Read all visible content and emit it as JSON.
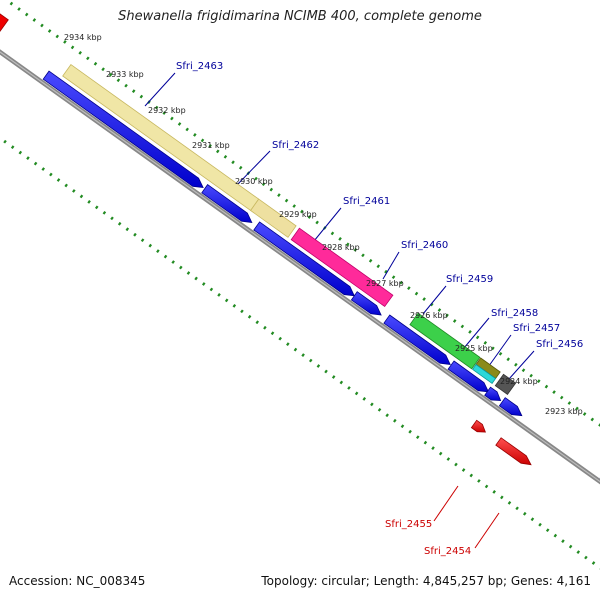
{
  "title": "Shewanella frigidimarina NCIMB 400, complete genome",
  "accession": "Accession: NC_008345",
  "summary": "Topology: circular; Length: 4,845,257 bp; Genes: 4,161",
  "colors": {
    "blue": "#0000ee",
    "red": "#ee0000",
    "ruler": "#228b22",
    "backbone": "#888888",
    "label_blue": "#00009a",
    "label_red": "#cc0000"
  },
  "kbp_ticks": [
    "2934 kbp",
    "2933 kbp",
    "2932 kbp",
    "2931 kbp",
    "2930 kbp",
    "2929 kbp",
    "2928 kbp",
    "2927 kbp",
    "2926 kbp",
    "2925 kbp",
    "2924 kbp",
    "2923 kbp"
  ],
  "gene_labels": [
    "Sfri_2463",
    "Sfri_2462",
    "Sfri_2461",
    "Sfri_2460",
    "Sfri_2459",
    "Sfri_2458",
    "Sfri_2457",
    "Sfri_2456",
    "Sfri_2455",
    "Sfri_2454"
  ]
}
